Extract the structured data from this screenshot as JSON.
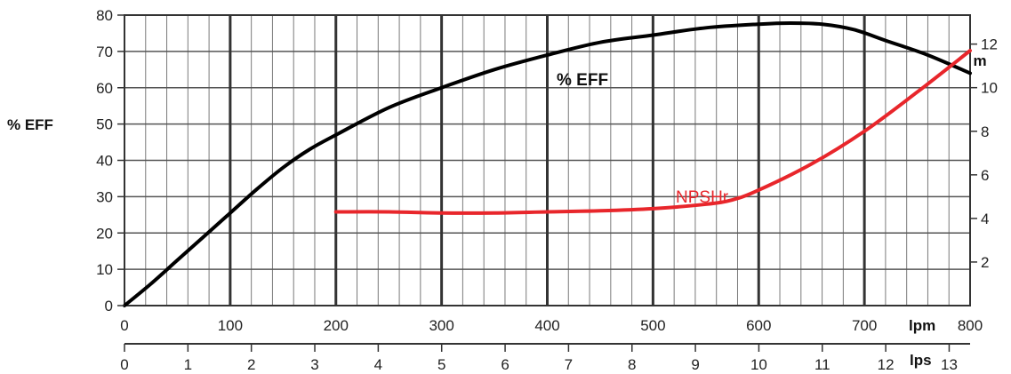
{
  "chart_data": {
    "type": "line",
    "left_axis": {
      "label": "% EFF",
      "min": 0,
      "max": 80,
      "ticks": [
        0,
        10,
        20,
        30,
        40,
        50,
        60,
        70,
        80
      ]
    },
    "right_axis": {
      "label": "m",
      "min": 0,
      "max": 13.33,
      "ticks": [
        2,
        4,
        6,
        8,
        10,
        12
      ]
    },
    "x_axis_lpm": {
      "label": "lpm",
      "min": 0,
      "max": 800,
      "ticks": [
        0,
        100,
        200,
        300,
        400,
        500,
        600,
        700,
        800
      ]
    },
    "x_axis_lps": {
      "label": "lps",
      "min": 0,
      "max": 13.33,
      "ticks": [
        0,
        1,
        2,
        3,
        4,
        5,
        6,
        7,
        8,
        9,
        10,
        11,
        12,
        13
      ]
    },
    "grid": true,
    "series": [
      {
        "name": "% EFF",
        "axis": "left",
        "color": "#000000",
        "x": [
          0,
          25,
          50,
          75,
          100,
          125,
          150,
          175,
          200,
          250,
          300,
          350,
          400,
          450,
          500,
          550,
          600,
          630,
          660,
          690,
          720,
          760,
          800
        ],
        "y": [
          0,
          6,
          12.5,
          19,
          25.5,
          32,
          38,
          43,
          47,
          54.5,
          60,
          65,
          69,
          72.5,
          74.5,
          76.5,
          77.5,
          77.8,
          77.5,
          76,
          73,
          69,
          64
        ]
      },
      {
        "name": "NPSHr",
        "axis": "right",
        "color": "#e8262b",
        "x": [
          200,
          250,
          300,
          350,
          400,
          450,
          500,
          550,
          575,
          600,
          650,
          700,
          750,
          800
        ],
        "y": [
          4.3,
          4.3,
          4.25,
          4.25,
          4.3,
          4.35,
          4.45,
          4.65,
          4.85,
          5.3,
          6.5,
          8.0,
          9.8,
          11.7
        ]
      }
    ],
    "annotations": [
      {
        "text": "% EFF",
        "series": "% EFF"
      },
      {
        "text": "NPSHr",
        "series": "NPSHr"
      }
    ]
  }
}
